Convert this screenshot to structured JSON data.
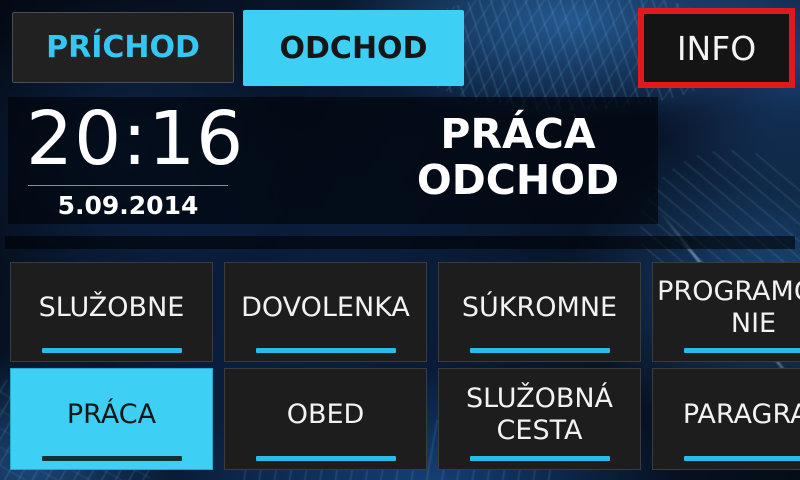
{
  "colors": {
    "accent_cyan": "#3ECFF4",
    "underline_cyan": "#2BBAE9",
    "info_border_red": "#E01A1A"
  },
  "top_bar": {
    "prichod_label": "PRÍCHOD",
    "odchod_label": "ODCHOD",
    "active_tab": "ODCHOD",
    "info_label": "INFO"
  },
  "clock": {
    "time": "20:16",
    "date": "5.09.2014"
  },
  "status": {
    "text": "PRÁCA\nODCHOD",
    "line1": "PRÁCA",
    "line2": "ODCHOD"
  },
  "grid": {
    "buttons": [
      {
        "label": "SLUŽOBNE",
        "selected": false
      },
      {
        "label": "DOVOLENKA",
        "selected": false
      },
      {
        "label": "SÚKROMNE",
        "selected": false
      },
      {
        "label": "PROGRAMOVA\nNIE",
        "selected": false
      },
      {
        "label": "PRÁCA",
        "selected": true
      },
      {
        "label": "OBED",
        "selected": false
      },
      {
        "label": "SLUŽOBNÁ\nCESTA",
        "selected": false
      },
      {
        "label": "PARAGRAF",
        "selected": false
      }
    ]
  }
}
